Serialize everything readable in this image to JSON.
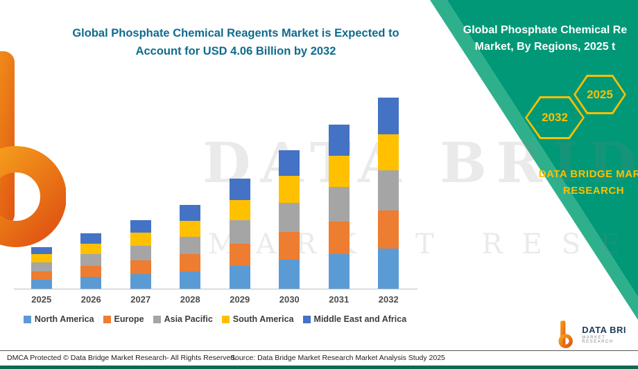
{
  "header": {
    "title_line1": "Global Phosphate Chemical Reagents Market is Expected to",
    "title_line2": "Account for USD 4.06 Billion by 2032"
  },
  "right_panel": {
    "title_line1": "Global Phosphate Chemical Re",
    "title_line2": "Market, By Regions, 2025 t",
    "hexagons": [
      "2032",
      "2025"
    ],
    "brand_line1": "DATA BRIDGE MARK",
    "brand_line2": "RESEARCH",
    "panel_color": "#009877",
    "accent_color": "#FFC000"
  },
  "watermark": {
    "line1": "DATA BRIDGE",
    "line2": "MARKET RESEARCH"
  },
  "chart_data": {
    "type": "bar",
    "stacked": true,
    "title": "Global Phosphate Chemical Reagents Market is Expected to Account for USD 4.06 Billion by 2032",
    "unit": "USD Billion",
    "xlabel": "",
    "ylabel": "",
    "ylim": [
      0,
      4.5
    ],
    "grid": false,
    "legend_position": "bottom",
    "categories": [
      "2025",
      "2026",
      "2027",
      "2028",
      "2029",
      "2030",
      "2031",
      "2032"
    ],
    "totals": [
      0.89,
      1.17,
      1.46,
      1.78,
      2.34,
      2.94,
      3.49,
      4.06
    ],
    "series": [
      {
        "name": "North America",
        "color": "#5B9BD5",
        "values": [
          0.19,
          0.25,
          0.31,
          0.37,
          0.49,
          0.62,
          0.73,
          0.85
        ]
      },
      {
        "name": "Europe",
        "color": "#ED7D31",
        "values": [
          0.18,
          0.23,
          0.29,
          0.36,
          0.47,
          0.59,
          0.7,
          0.81
        ]
      },
      {
        "name": "Asia Pacific",
        "color": "#A5A5A5",
        "values": [
          0.19,
          0.25,
          0.31,
          0.37,
          0.49,
          0.62,
          0.73,
          0.85
        ]
      },
      {
        "name": "South America",
        "color": "#FFC000",
        "values": [
          0.17,
          0.22,
          0.28,
          0.34,
          0.44,
          0.56,
          0.66,
          0.77
        ]
      },
      {
        "name": "Middle East and Africa",
        "color": "#4472C4",
        "values": [
          0.16,
          0.22,
          0.27,
          0.34,
          0.45,
          0.55,
          0.67,
          0.78
        ]
      }
    ]
  },
  "logos": {
    "bottom_text": "DATA BRI",
    "bottom_tagline": "MARKET RESEARCH"
  },
  "footer": {
    "dmca": "DMCA Protected © Data Bridge Market Research-  All Rights Reserved.",
    "source": "Source: Data Bridge Market Research  Market Analysis Study 2025"
  }
}
